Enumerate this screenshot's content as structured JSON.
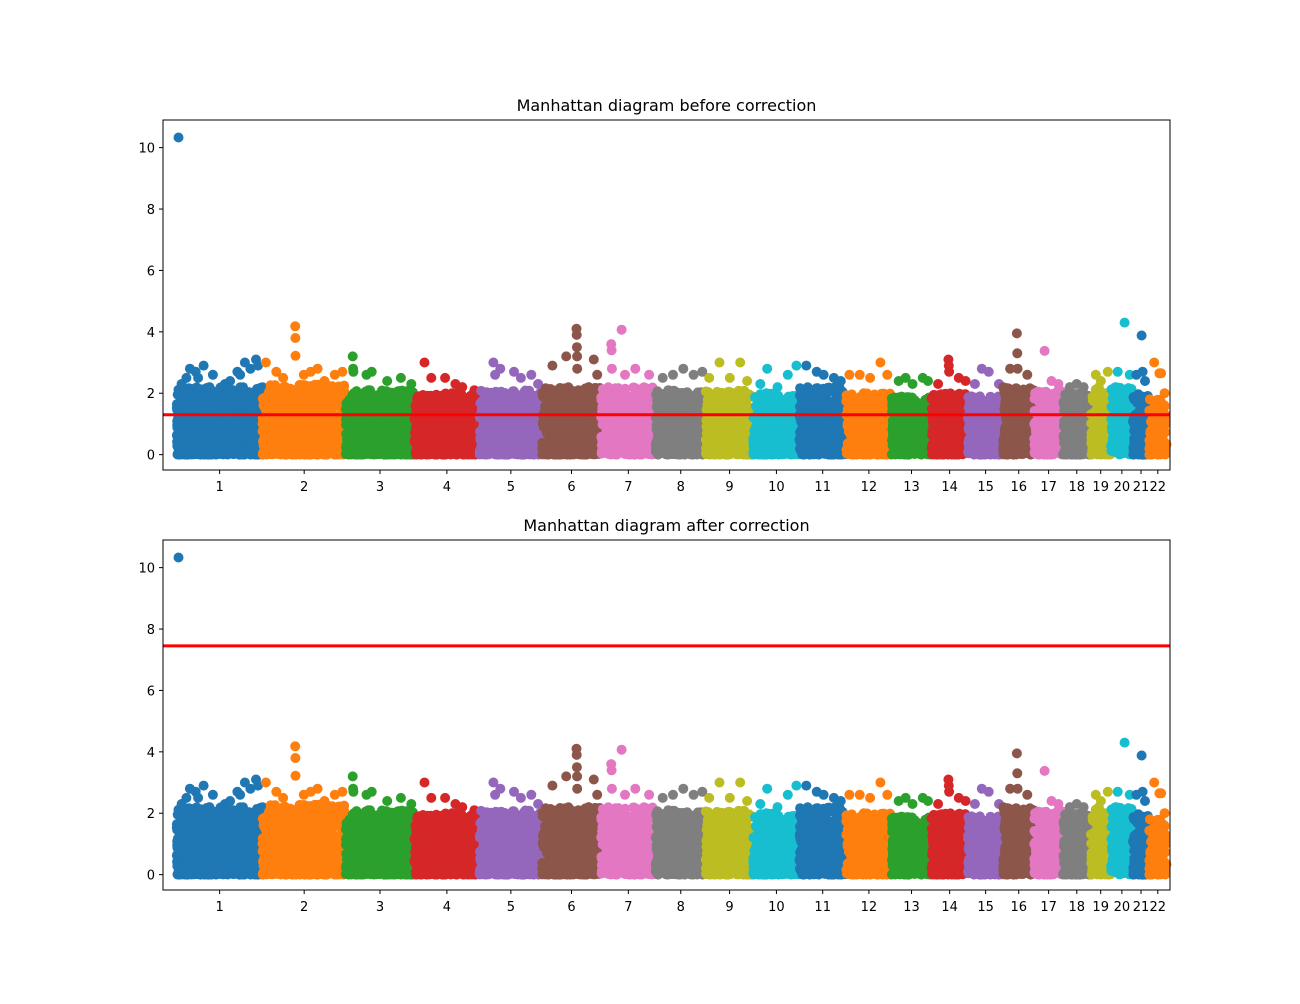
{
  "chart_data": [
    {
      "type": "scatter",
      "title": "Manhattan diagram before correction",
      "xlabel": "",
      "ylabel": "",
      "ylim": [
        -0.5,
        10.9
      ],
      "yticks": [
        0,
        2,
        4,
        6,
        8,
        10
      ],
      "threshold": 1.301,
      "threshold_color": "#ff0000",
      "grid": false,
      "legend": "none",
      "chromosomes": [
        {
          "label": "1",
          "start": 0.0,
          "end": 248.96,
          "color": "#1f77b4",
          "base": 2.2,
          "peaks": [
            [
              5,
              10.33
            ],
            [
              14,
              2.3
            ],
            [
              28,
              2.5
            ],
            [
              38,
              2.8
            ],
            [
              55,
              2.7
            ],
            [
              62,
              2.5
            ],
            [
              78,
              2.9
            ],
            [
              95,
              2.2
            ],
            [
              105,
              2.6
            ],
            [
              122,
              2.0
            ],
            [
              140,
              2.3
            ],
            [
              155,
              2.4
            ],
            [
              176,
              2.7
            ],
            [
              184,
              2.6
            ],
            [
              198,
              3.0
            ],
            [
              214,
              2.8
            ],
            [
              230,
              3.1
            ],
            [
              236,
              2.9
            ]
          ]
        },
        {
          "label": "2",
          "start": 248.96,
          "end": 491.15,
          "color": "#ff7f0e",
          "base": 2.3,
          "peaks": [
            [
              10,
              3.0
            ],
            [
              40,
              2.7
            ],
            [
              60,
              2.5
            ],
            [
              95,
              4.18
            ],
            [
              95.5,
              3.8
            ],
            [
              96,
              3.22
            ],
            [
              120,
              2.6
            ],
            [
              140,
              2.7
            ],
            [
              160,
              2.8
            ],
            [
              180,
              2.4
            ],
            [
              210,
              2.6
            ],
            [
              232,
              2.7
            ]
          ]
        },
        {
          "label": "3",
          "start": 491.15,
          "end": 689.45,
          "color": "#2ca02c",
          "base": 2.1,
          "peaks": [
            [
              20,
              3.2
            ],
            [
              21,
              2.8
            ],
            [
              22,
              2.7
            ],
            [
              60,
              2.6
            ],
            [
              75,
              2.7
            ],
            [
              120,
              2.4
            ],
            [
              160,
              2.5
            ],
            [
              190,
              2.3
            ]
          ]
        },
        {
          "label": "4",
          "start": 689.45,
          "end": 879.66,
          "color": "#d62728",
          "base": 2.0,
          "peaks": [
            [
              30,
              3.0
            ],
            [
              50,
              2.5
            ],
            [
              90,
              2.5
            ],
            [
              120,
              2.3
            ],
            [
              140,
              2.2
            ],
            [
              175,
              2.1
            ]
          ]
        },
        {
          "label": "5",
          "start": 879.66,
          "end": 1061.19,
          "color": "#9467bd",
          "base": 2.1,
          "peaks": [
            [
              40,
              3.0
            ],
            [
              45,
              2.6
            ],
            [
              60,
              2.8
            ],
            [
              100,
              2.7
            ],
            [
              120,
              2.5
            ],
            [
              150,
              2.6
            ],
            [
              170,
              2.3
            ]
          ]
        },
        {
          "label": "6",
          "start": 1061.19,
          "end": 1232.0,
          "color": "#8c564b",
          "base": 2.2,
          "peaks": [
            [
              30,
              2.9
            ],
            [
              70,
              3.2
            ],
            [
              100,
              4.1
            ],
            [
              100.5,
              3.9
            ],
            [
              101,
              3.5
            ],
            [
              101.5,
              3.2
            ],
            [
              102,
              2.8
            ],
            [
              150,
              3.1
            ],
            [
              160,
              2.6
            ]
          ]
        },
        {
          "label": "7",
          "start": 1232.0,
          "end": 1391.35,
          "color": "#e377c2",
          "base": 2.2,
          "peaks": [
            [
              30,
              3.6
            ],
            [
              31,
              3.4
            ],
            [
              32,
              2.8
            ],
            [
              60,
              4.07
            ],
            [
              70,
              2.6
            ],
            [
              100,
              2.8
            ],
            [
              140,
              2.6
            ]
          ]
        },
        {
          "label": "8",
          "start": 1391.35,
          "end": 1536.49,
          "color": "#7f7f7f",
          "base": 2.1,
          "peaks": [
            [
              20,
              2.5
            ],
            [
              50,
              2.6
            ],
            [
              80,
              2.8
            ],
            [
              110,
              2.6
            ],
            [
              135,
              2.7
            ]
          ]
        },
        {
          "label": "9",
          "start": 1536.49,
          "end": 1674.88,
          "color": "#bcbd22",
          "base": 2.1,
          "peaks": [
            [
              10,
              2.5
            ],
            [
              40,
              3.0
            ],
            [
              70,
              2.5
            ],
            [
              100,
              3.0
            ],
            [
              120,
              2.4
            ]
          ]
        },
        {
          "label": "10",
          "start": 1674.88,
          "end": 1808.68,
          "color": "#17becf",
          "base": 2.0,
          "peaks": [
            [
              20,
              2.3
            ],
            [
              40,
              2.8
            ],
            [
              70,
              2.2
            ],
            [
              100,
              2.6
            ],
            [
              125,
              2.9
            ]
          ]
        },
        {
          "label": "11",
          "start": 1808.68,
          "end": 1943.76,
          "color": "#1f77b4",
          "base": 2.2,
          "peaks": [
            [
              20,
              2.9
            ],
            [
              50,
              2.7
            ],
            [
              70,
              2.6
            ],
            [
              100,
              2.5
            ],
            [
              120,
              2.4
            ]
          ]
        },
        {
          "label": "12",
          "start": 1943.76,
          "end": 2077.04,
          "color": "#ff7f0e",
          "base": 2.0,
          "peaks": [
            [
              10,
              2.6
            ],
            [
              40,
              2.6
            ],
            [
              70,
              2.5
            ],
            [
              100,
              3.0
            ],
            [
              120,
              2.6
            ]
          ]
        },
        {
          "label": "13",
          "start": 2077.04,
          "end": 2191.4,
          "color": "#2ca02c",
          "base": 1.9,
          "peaks": [
            [
              20,
              2.4
            ],
            [
              40,
              2.5
            ],
            [
              60,
              2.3
            ],
            [
              90,
              2.5
            ],
            [
              105,
              2.4
            ]
          ]
        },
        {
          "label": "14",
          "start": 2191.4,
          "end": 2298.44,
          "color": "#d62728",
          "base": 2.0,
          "peaks": [
            [
              20,
              2.3
            ],
            [
              50,
              3.1
            ],
            [
              51,
              2.9
            ],
            [
              52,
              2.7
            ],
            [
              80,
              2.5
            ],
            [
              100,
              2.4
            ]
          ]
        },
        {
          "label": "15",
          "start": 2298.44,
          "end": 2400.43,
          "color": "#9467bd",
          "base": 1.9,
          "peaks": [
            [
              20,
              2.3
            ],
            [
              40,
              2.8
            ],
            [
              60,
              2.7
            ],
            [
              90,
              2.3
            ]
          ]
        },
        {
          "label": "16",
          "start": 2400.43,
          "end": 2490.77,
          "color": "#8c564b",
          "base": 2.2,
          "peaks": [
            [
              20,
              2.8
            ],
            [
              40,
              3.95
            ],
            [
              41,
              3.3
            ],
            [
              42,
              2.8
            ],
            [
              70,
              2.6
            ]
          ]
        },
        {
          "label": "17",
          "start": 2490.77,
          "end": 2574.03,
          "color": "#e377c2",
          "base": 2.1,
          "peaks": [
            [
              30,
              3.38
            ],
            [
              50,
              2.4
            ],
            [
              70,
              2.3
            ]
          ]
        },
        {
          "label": "18",
          "start": 2574.03,
          "end": 2654.4,
          "color": "#7f7f7f",
          "base": 2.0,
          "peaks": [
            [
              20,
              2.2
            ],
            [
              40,
              2.3
            ],
            [
              60,
              2.2
            ]
          ]
        },
        {
          "label": "19",
          "start": 2654.4,
          "end": 2713.02,
          "color": "#bcbd22",
          "base": 2.2,
          "peaks": [
            [
              15,
              2.6
            ],
            [
              30,
              2.4
            ],
            [
              50,
              2.7
            ]
          ]
        },
        {
          "label": "20",
          "start": 2713.02,
          "end": 2777.46,
          "color": "#17becf",
          "base": 2.2,
          "peaks": [
            [
              20,
              2.7
            ],
            [
              40,
              4.3
            ],
            [
              55,
              2.6
            ]
          ]
        },
        {
          "label": "21",
          "start": 2777.46,
          "end": 2824.17,
          "color": "#1f77b4",
          "base": 2.0,
          "peaks": [
            [
              10,
              2.6
            ],
            [
              25,
              3.88
            ],
            [
              28,
              2.7
            ],
            [
              35,
              2.4
            ]
          ]
        },
        {
          "label": "22",
          "start": 2824.17,
          "end": 2875.0,
          "color": "#ff7f0e",
          "base": 1.8,
          "peaks": [
            [
              15,
              3.0
            ],
            [
              30,
              2.65
            ],
            [
              35,
              2.65
            ],
            [
              45,
              2.0
            ]
          ]
        }
      ]
    },
    {
      "type": "scatter",
      "title": "Manhattan diagram after correction",
      "xlabel": "",
      "ylabel": "",
      "ylim": [
        -0.5,
        10.9
      ],
      "yticks": [
        0,
        2,
        4,
        6,
        8,
        10
      ],
      "threshold": 7.45,
      "threshold_color": "#ff0000",
      "grid": false,
      "legend": "none",
      "same_points_as": 0
    }
  ]
}
